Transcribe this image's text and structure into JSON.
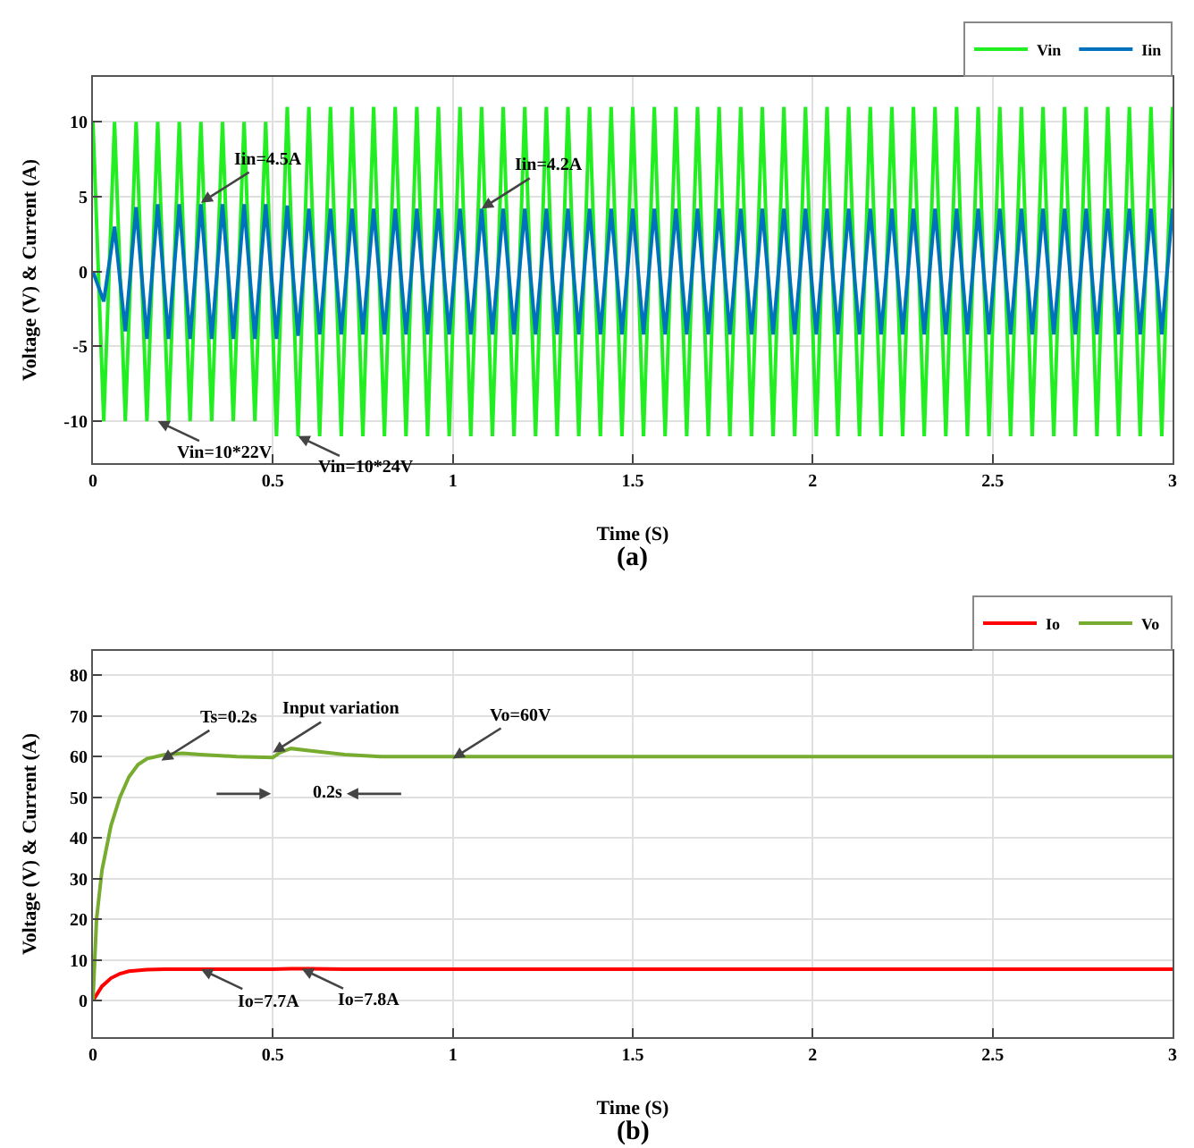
{
  "chart_data": [
    {
      "type": "line",
      "xlabel": "Time (S)",
      "ylabel": "Voltage (V) & Current (A)",
      "xlim": [
        0,
        3
      ],
      "xticks": [
        0,
        0.5,
        1,
        1.5,
        2,
        2.5,
        3
      ],
      "ylim": [
        -12.8,
        13
      ],
      "yticks": [
        -10,
        -5,
        0,
        5,
        10
      ],
      "grid": true,
      "legend": "top right",
      "marker": "none",
      "line_style": "solid",
      "x": [
        0,
        0.03,
        0.06,
        0.09,
        0.12,
        0.15,
        0.18,
        0.21,
        0.24,
        0.27,
        0.3,
        0.33,
        0.36,
        0.39,
        0.42,
        0.45,
        0.48,
        0.51,
        0.54,
        0.57,
        0.6,
        0.63,
        0.66,
        0.69,
        0.72,
        0.75,
        0.78,
        0.81,
        0.84,
        0.87,
        0.9,
        0.93,
        0.96,
        0.99,
        1.02,
        1.05,
        1.08,
        1.11,
        1.14,
        1.17,
        1.2,
        1.23,
        1.26,
        1.29,
        1.32,
        1.35,
        1.38,
        1.41,
        1.44,
        1.47,
        1.5,
        1.53,
        1.56,
        1.59,
        1.62,
        1.65,
        1.68,
        1.71,
        1.74,
        1.77,
        1.8,
        1.83,
        1.86,
        1.89,
        1.92,
        1.95,
        1.98,
        2.01,
        2.04,
        2.07,
        2.1,
        2.13,
        2.16,
        2.19,
        2.22,
        2.25,
        2.28,
        2.31,
        2.34,
        2.37,
        2.4,
        2.43,
        2.46,
        2.49,
        2.52,
        2.55,
        2.58,
        2.61,
        2.64,
        2.67,
        2.7,
        2.73,
        2.76,
        2.79,
        2.82,
        2.85,
        2.88,
        2.91,
        2.94,
        2.97,
        3.0
      ],
      "series": [
        {
          "name": "Vin",
          "color": "#22ee22",
          "values": [
            10,
            -10,
            10,
            -10,
            10,
            -10,
            10,
            -10,
            10,
            -10,
            10,
            -10,
            10,
            -10,
            10,
            -10,
            10,
            -11,
            11,
            -11,
            11,
            -11,
            11,
            -11,
            11,
            -11,
            11,
            -11,
            11,
            -11,
            11,
            -11,
            11,
            -11,
            11,
            -11,
            11,
            -11,
            11,
            -11,
            11,
            -11,
            11,
            -11,
            11,
            -11,
            11,
            -11,
            11,
            -11,
            11,
            -11,
            11,
            -11,
            11,
            -11,
            11,
            -11,
            11,
            -11,
            11,
            -11,
            11,
            -11,
            11,
            -11,
            11,
            -11,
            11,
            -11,
            11,
            -11,
            11,
            -11,
            11,
            -11,
            11,
            -11,
            11,
            -11,
            11,
            -11,
            11,
            -11,
            11,
            -11,
            11,
            -11,
            11,
            -11,
            11,
            -11,
            11,
            -11,
            11,
            -11,
            11,
            -11,
            11,
            -11,
            11
          ]
        },
        {
          "name": "Iin",
          "color": "#0072bd",
          "values": [
            0,
            -2,
            3,
            -4,
            4.3,
            -4.5,
            4.5,
            -4.5,
            4.5,
            -4.5,
            4.5,
            -4.5,
            4.5,
            -4.5,
            4.5,
            -4.5,
            4.5,
            -4.5,
            4.4,
            -4.3,
            4.2,
            -4.2,
            4.2,
            -4.2,
            4.2,
            -4.2,
            4.2,
            -4.2,
            4.2,
            -4.2,
            4.2,
            -4.2,
            4.2,
            -4.2,
            4.2,
            -4.2,
            4.2,
            -4.2,
            4.2,
            -4.2,
            4.2,
            -4.2,
            4.2,
            -4.2,
            4.2,
            -4.2,
            4.2,
            -4.2,
            4.2,
            -4.2,
            4.2,
            -4.2,
            4.2,
            -4.2,
            4.2,
            -4.2,
            4.2,
            -4.2,
            4.2,
            -4.2,
            4.2,
            -4.2,
            4.2,
            -4.2,
            4.2,
            -4.2,
            4.2,
            -4.2,
            4.2,
            -4.2,
            4.2,
            -4.2,
            4.2,
            -4.2,
            4.2,
            -4.2,
            4.2,
            -4.2,
            4.2,
            -4.2,
            4.2,
            -4.2,
            4.2,
            -4.2,
            4.2,
            -4.2,
            4.2,
            -4.2,
            4.2,
            -4.2,
            4.2,
            -4.2,
            4.2,
            -4.2,
            4.2,
            -4.2,
            4.2,
            -4.2,
            4.2,
            -4.2,
            4.2
          ]
        }
      ],
      "annotations": [
        {
          "text": "Iin=4.5A",
          "x": 0.3,
          "y": 4.6
        },
        {
          "text": "Iin=4.2A",
          "x": 1.08,
          "y": 4.2
        },
        {
          "text": "Vin=10*22V",
          "x": 0.18,
          "y": -10
        },
        {
          "text": "Vin=10*24V",
          "x": 0.57,
          "y": -11
        },
        "(a)"
      ]
    },
    {
      "type": "line",
      "xlabel": "Time (S)",
      "ylabel": "Voltage (V) & Current (A)",
      "xlim": [
        0,
        3
      ],
      "xticks": [
        0,
        0.5,
        1,
        1.5,
        2,
        2.5,
        3
      ],
      "ylim": [
        -9,
        86
      ],
      "yticks": [
        0,
        10,
        20,
        30,
        40,
        50,
        60,
        70,
        80
      ],
      "grid": true,
      "legend": "top right",
      "marker": "none",
      "line_style": "solid",
      "series": [
        {
          "name": "Io",
          "color": "#ff0000",
          "x": [
            0,
            0.025,
            0.05,
            0.075,
            0.1,
            0.15,
            0.2,
            0.3,
            0.5,
            0.55,
            0.6,
            0.7,
            1,
            2,
            3
          ],
          "values": [
            0,
            3.5,
            5.5,
            6.6,
            7.2,
            7.6,
            7.7,
            7.7,
            7.7,
            7.8,
            7.8,
            7.7,
            7.7,
            7.7,
            7.7
          ]
        },
        {
          "name": "Vo",
          "color": "#77ac30",
          "x": [
            0,
            0.01,
            0.025,
            0.05,
            0.075,
            0.1,
            0.125,
            0.15,
            0.2,
            0.25,
            0.3,
            0.4,
            0.5,
            0.52,
            0.55,
            0.6,
            0.7,
            0.8,
            1,
            1.5,
            2,
            2.5,
            3
          ],
          "values": [
            0,
            20,
            32,
            43,
            50,
            55,
            58,
            59.5,
            60.5,
            60.8,
            60.5,
            60,
            59.8,
            61,
            62,
            61.5,
            60.5,
            60,
            60,
            60,
            60,
            60,
            60
          ]
        }
      ],
      "annotations": [
        {
          "text": "Input variation",
          "x": 0.5,
          "y": 61
        },
        {
          "text": "Ts=0.2s",
          "x": 0.19,
          "y": 59
        },
        "0.2s",
        {
          "text": "Vo=60V",
          "x": 1.0,
          "y": 59.5
        },
        {
          "text": "Io=7.7A",
          "x": 0.3,
          "y": 7.7
        },
        {
          "text": "Io=7.8A",
          "x": 0.58,
          "y": 7.8
        },
        "(b)"
      ]
    }
  ]
}
